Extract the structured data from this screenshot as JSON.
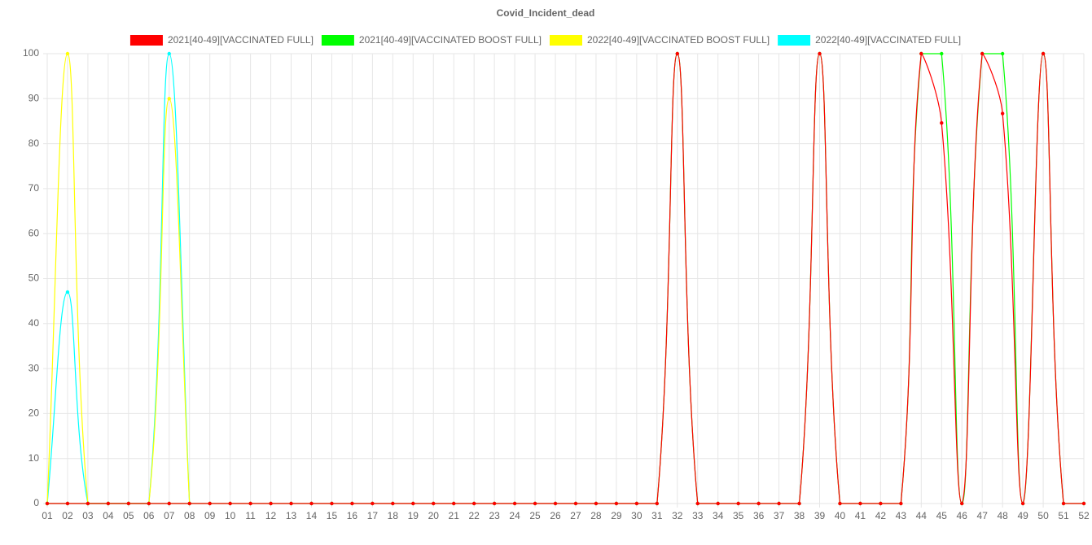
{
  "chart_data": {
    "type": "line",
    "title": "Covid_Incident_dead",
    "categories": [
      "01",
      "02",
      "03",
      "04",
      "05",
      "06",
      "07",
      "08",
      "09",
      "10",
      "11",
      "12",
      "13",
      "14",
      "15",
      "16",
      "17",
      "18",
      "19",
      "20",
      "21",
      "22",
      "23",
      "24",
      "25",
      "26",
      "27",
      "28",
      "29",
      "30",
      "31",
      "32",
      "33",
      "34",
      "35",
      "36",
      "37",
      "38",
      "39",
      "40",
      "41",
      "42",
      "43",
      "44",
      "45",
      "46",
      "47",
      "48",
      "49",
      "50",
      "51",
      "52"
    ],
    "series": [
      {
        "name": "2021[40-49][VACCINATED FULL]",
        "color": "#ff0000",
        "values": [
          0,
          0,
          0,
          0,
          0,
          0,
          0,
          0,
          0,
          0,
          0,
          0,
          0,
          0,
          0,
          0,
          0,
          0,
          0,
          0,
          0,
          0,
          0,
          0,
          0,
          0,
          0,
          0,
          0,
          0,
          0,
          100,
          0,
          0,
          0,
          0,
          0,
          0,
          100,
          0,
          0,
          0,
          0,
          100,
          84.6,
          0,
          100,
          86.7,
          0,
          100,
          0,
          0
        ]
      },
      {
        "name": "2021[40-49][VACCINATED BOOST FULL]",
        "color": "#00ff00",
        "values": [
          0,
          0,
          0,
          0,
          0,
          0,
          0,
          0,
          0,
          0,
          0,
          0,
          0,
          0,
          0,
          0,
          0,
          0,
          0,
          0,
          0,
          0,
          0,
          0,
          0,
          0,
          0,
          0,
          0,
          0,
          0,
          100,
          0,
          0,
          0,
          0,
          0,
          0,
          100,
          0,
          0,
          0,
          0,
          100,
          100,
          0,
          100,
          100,
          0,
          100,
          0,
          0
        ]
      },
      {
        "name": "2022[40-49][VACCINATED BOOST FULL]",
        "color": "#ffff00",
        "values": [
          0,
          100,
          0,
          0,
          0,
          0,
          90,
          0,
          null,
          null,
          null,
          null,
          null,
          null,
          null,
          null,
          null,
          null,
          null,
          null,
          null,
          null,
          null,
          null,
          null,
          null,
          null,
          null,
          null,
          null,
          null,
          null,
          null,
          null,
          null,
          null,
          null,
          null,
          null,
          null,
          null,
          null,
          null,
          null,
          null,
          null,
          null,
          null,
          null,
          null,
          null,
          null
        ]
      },
      {
        "name": "2022[40-49][VACCINATED FULL]",
        "color": "#00ffff",
        "values": [
          0,
          47,
          0,
          0,
          0,
          0,
          100,
          0,
          null,
          null,
          null,
          null,
          null,
          null,
          null,
          null,
          null,
          null,
          null,
          null,
          null,
          null,
          null,
          null,
          null,
          null,
          null,
          null,
          null,
          null,
          null,
          null,
          null,
          null,
          null,
          null,
          null,
          null,
          null,
          null,
          null,
          null,
          null,
          null,
          null,
          null,
          null,
          null,
          null,
          null,
          null,
          null
        ]
      }
    ],
    "ylim": [
      0,
      100
    ],
    "yticks": [
      0,
      10,
      20,
      30,
      40,
      50,
      60,
      70,
      80,
      90,
      100
    ],
    "grid": true,
    "legend": "top"
  }
}
